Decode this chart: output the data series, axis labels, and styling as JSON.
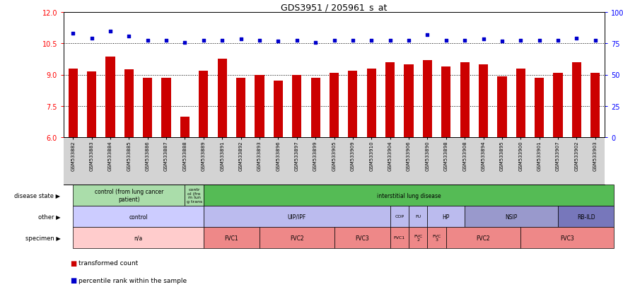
{
  "title": "GDS3951 / 205961_s_at",
  "samples": [
    "GSM533882",
    "GSM533883",
    "GSM533884",
    "GSM533885",
    "GSM533886",
    "GSM533887",
    "GSM533888",
    "GSM533889",
    "GSM533891",
    "GSM533892",
    "GSM533893",
    "GSM533896",
    "GSM533897",
    "GSM533899",
    "GSM533905",
    "GSM533909",
    "GSM533910",
    "GSM533904",
    "GSM533906",
    "GSM533890",
    "GSM533898",
    "GSM533908",
    "GSM533894",
    "GSM533895",
    "GSM533900",
    "GSM533901",
    "GSM533907",
    "GSM533902",
    "GSM533903"
  ],
  "bar_values": [
    9.3,
    9.15,
    9.85,
    9.25,
    8.85,
    8.85,
    7.0,
    9.2,
    9.75,
    8.85,
    9.0,
    8.7,
    9.0,
    8.85,
    9.1,
    9.2,
    9.3,
    9.6,
    9.5,
    9.7,
    9.4,
    9.6,
    9.5,
    8.9,
    9.3,
    8.85,
    9.1,
    9.6,
    9.1
  ],
  "dot_values": [
    11.0,
    10.75,
    11.1,
    10.85,
    10.65,
    10.65,
    10.55,
    10.65,
    10.65,
    10.7,
    10.65,
    10.6,
    10.65,
    10.55,
    10.65,
    10.65,
    10.65,
    10.65,
    10.65,
    10.9,
    10.65,
    10.65,
    10.7,
    10.6,
    10.65,
    10.65,
    10.65,
    10.75,
    10.65
  ],
  "ylim_left": [
    6,
    12
  ],
  "yticks_left": [
    6,
    7.5,
    9,
    10.5,
    12
  ],
  "yticks_right_vals": [
    0,
    25,
    50,
    75,
    100
  ],
  "yticks_right_labels": [
    "0",
    "25",
    "50",
    "75",
    "100%"
  ],
  "hlines": [
    7.5,
    9.0,
    10.5
  ],
  "bar_color": "#CC0000",
  "dot_color": "#0000CC",
  "plot_bg": "#ffffff",
  "disease_state_groups": [
    {
      "label": "control (from lung cancer\npatient)",
      "start": 0,
      "end": 6
    },
    {
      "label": "contr\nol (fro\nm lun\ng trans",
      "start": 6,
      "end": 7
    },
    {
      "label": "interstitial lung disease",
      "start": 7,
      "end": 29
    }
  ],
  "disease_state_colors": [
    "#AADDAA",
    "#AADDAA",
    "#55BB55"
  ],
  "other_groups": [
    {
      "label": "control",
      "start": 0,
      "end": 7
    },
    {
      "label": "UIP/IPF",
      "start": 7,
      "end": 17
    },
    {
      "label": "COP",
      "start": 17,
      "end": 18
    },
    {
      "label": "FU",
      "start": 18,
      "end": 19
    },
    {
      "label": "HP",
      "start": 19,
      "end": 21
    },
    {
      "label": "NSIP",
      "start": 21,
      "end": 26
    },
    {
      "label": "RB-ILD",
      "start": 26,
      "end": 29
    }
  ],
  "other_colors": [
    "#CCCCFF",
    "#BBBBEE",
    "#BBBBEE",
    "#BBBBEE",
    "#BBBBEE",
    "#9999CC",
    "#7777BB"
  ],
  "specimen_groups": [
    {
      "label": "n/a",
      "start": 0,
      "end": 7
    },
    {
      "label": "FVC1",
      "start": 7,
      "end": 10
    },
    {
      "label": "FVC2",
      "start": 10,
      "end": 14
    },
    {
      "label": "FVC3",
      "start": 14,
      "end": 17
    },
    {
      "label": "FVC1",
      "start": 17,
      "end": 18
    },
    {
      "label": "FVC\n2",
      "start": 18,
      "end": 19
    },
    {
      "label": "FVC\n3",
      "start": 19,
      "end": 20
    },
    {
      "label": "FVC2",
      "start": 20,
      "end": 24
    },
    {
      "label": "FVC3",
      "start": 24,
      "end": 29
    }
  ],
  "specimen_colors": [
    "#FFCCCC",
    "#EE8888",
    "#EE8888",
    "#EE8888",
    "#EE8888",
    "#EE8888",
    "#EE8888",
    "#EE8888",
    "#EE8888"
  ],
  "row_labels": [
    "disease state",
    "other",
    "specimen"
  ],
  "legend_bar_label": "transformed count",
  "legend_dot_label": "percentile rank within the sample"
}
